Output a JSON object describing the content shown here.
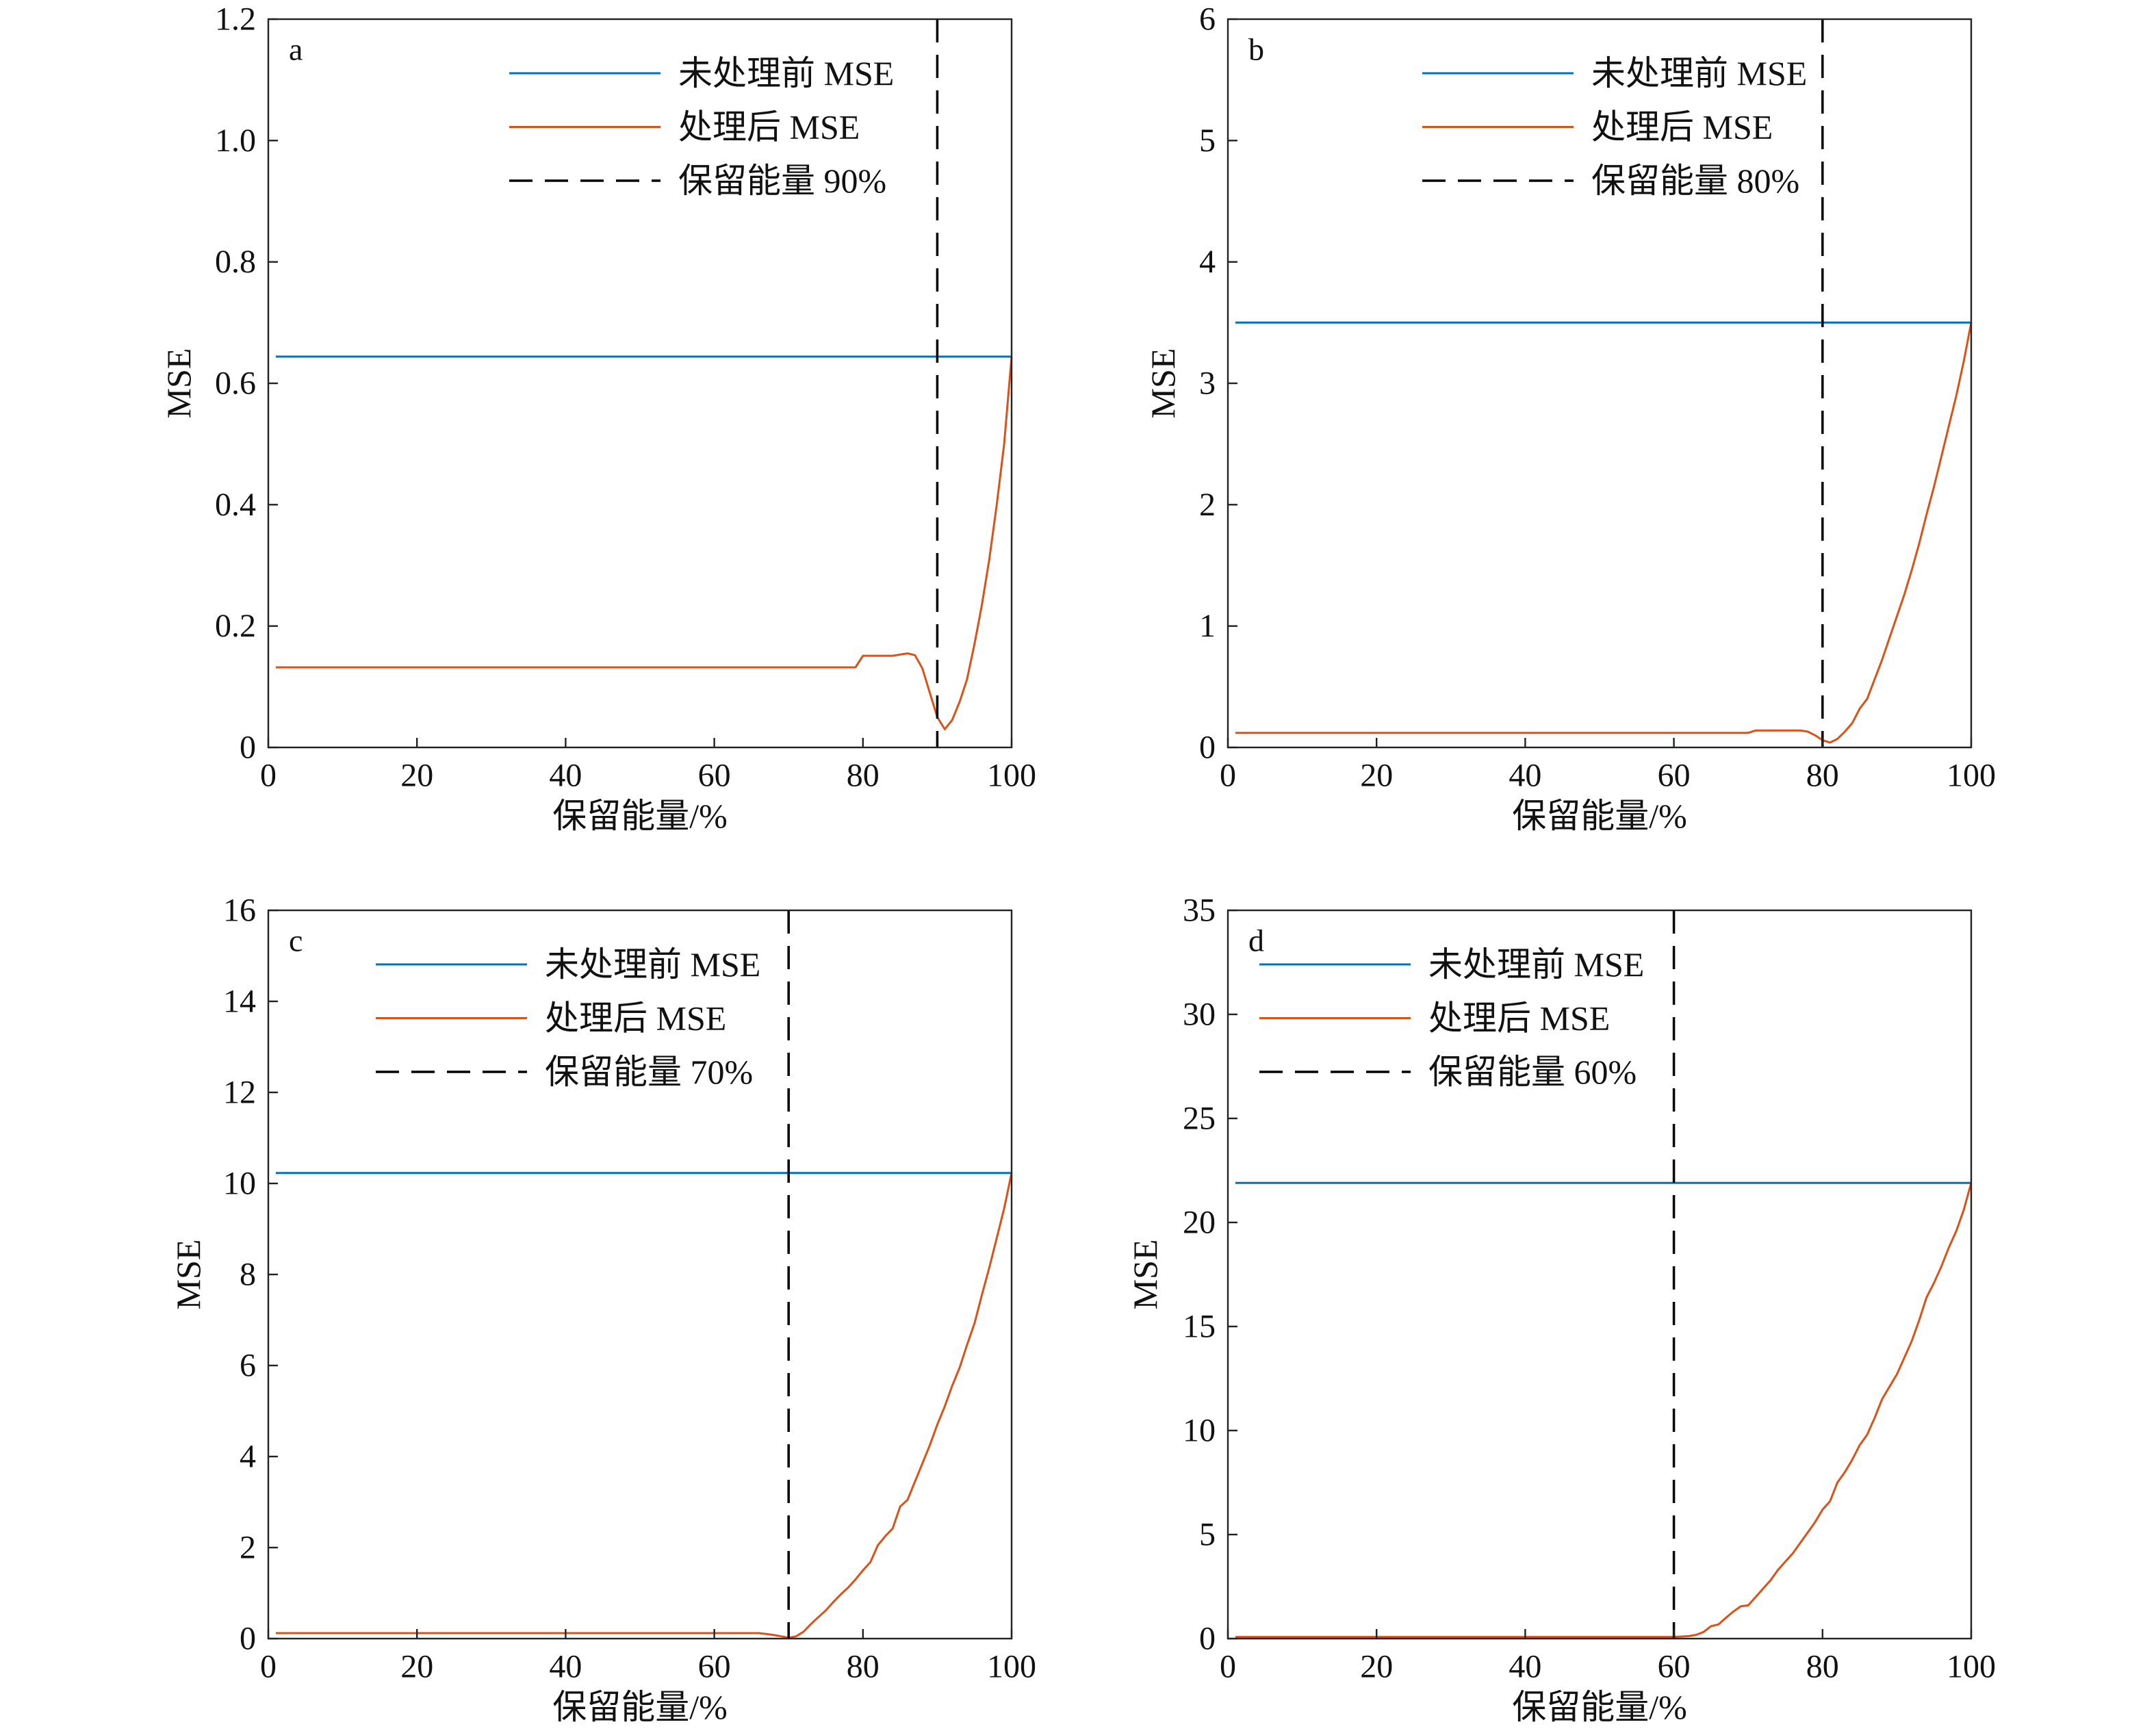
{
  "chart_data": [
    {
      "panel_label": "a",
      "type": "line",
      "xlabel": "保留能量/%",
      "ylabel": "MSE",
      "xlim": [
        0,
        100
      ],
      "ylim": [
        0,
        1.2
      ],
      "xticks": [
        "0",
        "20",
        "40",
        "60",
        "80",
        "100"
      ],
      "yticks": [
        "0",
        "0.2",
        "0.4",
        "0.6",
        "0.8",
        "1.0",
        "1.2"
      ],
      "grid": false,
      "legend_loc": "upper right",
      "series": [
        {
          "name": "未处理前 MSE",
          "color": "#0072BD",
          "x": [
            1,
            100
          ],
          "y": [
            0.644,
            0.644
          ]
        },
        {
          "name": "处理后 MSE",
          "color": "#D95319",
          "x": [
            1,
            79,
            80,
            84,
            85,
            86,
            87,
            88,
            89,
            90,
            91,
            92,
            93,
            94,
            95,
            96,
            97,
            98,
            99,
            100
          ],
          "y": [
            0.132,
            0.132,
            0.151,
            0.151,
            0.153,
            0.155,
            0.152,
            0.13,
            0.09,
            0.05,
            0.03,
            0.045,
            0.075,
            0.112,
            0.17,
            0.235,
            0.31,
            0.4,
            0.5,
            0.644
          ]
        }
      ],
      "vline": {
        "name": "保留能量 90%",
        "x": 90,
        "color": "#000000",
        "style": "dashed"
      }
    },
    {
      "panel_label": "b",
      "type": "line",
      "xlabel": "保留能量/%",
      "ylabel": "MSE",
      "xlim": [
        0,
        100
      ],
      "ylim": [
        0,
        6
      ],
      "xticks": [
        "0",
        "20",
        "40",
        "60",
        "80",
        "100"
      ],
      "yticks": [
        "0",
        "1",
        "2",
        "3",
        "4",
        "5",
        "6"
      ],
      "grid": false,
      "legend_loc": "upper right",
      "series": [
        {
          "name": "未处理前 MSE",
          "color": "#0072BD",
          "x": [
            1,
            100
          ],
          "y": [
            3.5,
            3.5
          ]
        },
        {
          "name": "处理后 MSE",
          "color": "#D95319",
          "x": [
            1,
            70,
            71,
            77,
            78,
            79,
            80,
            81,
            82,
            83,
            84,
            85,
            86,
            87,
            88,
            89,
            90,
            91,
            92,
            93,
            94,
            95,
            96,
            97,
            98,
            99,
            100
          ],
          "y": [
            0.12,
            0.12,
            0.14,
            0.14,
            0.13,
            0.1,
            0.06,
            0.04,
            0.07,
            0.13,
            0.2,
            0.32,
            0.4,
            0.56,
            0.72,
            0.9,
            1.08,
            1.26,
            1.46,
            1.68,
            1.92,
            2.15,
            2.4,
            2.65,
            2.9,
            3.18,
            3.5
          ]
        }
      ],
      "vline": {
        "name": "保留能量 80%",
        "x": 80,
        "color": "#000000",
        "style": "dashed"
      }
    },
    {
      "panel_label": "c",
      "type": "line",
      "xlabel": "保留能量/%",
      "ylabel": "MSE",
      "xlim": [
        0,
        100
      ],
      "ylim": [
        0,
        16
      ],
      "xticks": [
        "0",
        "20",
        "40",
        "60",
        "80",
        "100"
      ],
      "yticks": [
        "0",
        "2",
        "4",
        "6",
        "8",
        "10",
        "12",
        "14",
        "16"
      ],
      "grid": false,
      "legend_loc": "upper center",
      "series": [
        {
          "name": "未处理前 MSE",
          "color": "#0072BD",
          "x": [
            1,
            100
          ],
          "y": [
            10.23,
            10.23
          ]
        },
        {
          "name": "处理后 MSE",
          "color": "#D95319",
          "x": [
            1,
            66,
            67,
            68,
            69,
            70,
            71,
            72,
            73,
            74,
            75,
            76,
            77,
            78,
            79,
            80,
            81,
            82,
            83,
            84,
            85,
            86,
            87,
            88,
            89,
            90,
            91,
            92,
            93,
            94,
            95,
            96,
            97,
            98,
            99,
            100
          ],
          "y": [
            0.12,
            0.12,
            0.1,
            0.08,
            0.05,
            0.02,
            0.05,
            0.15,
            0.32,
            0.47,
            0.62,
            0.8,
            0.97,
            1.12,
            1.3,
            1.5,
            1.68,
            2.05,
            2.25,
            2.42,
            2.9,
            3.05,
            3.45,
            3.85,
            4.25,
            4.7,
            5.1,
            5.55,
            5.95,
            6.45,
            6.92,
            7.55,
            8.15,
            8.8,
            9.45,
            10.23
          ]
        }
      ],
      "vline": {
        "name": "保留能量 70%",
        "x": 70,
        "color": "#000000",
        "style": "dashed"
      }
    },
    {
      "panel_label": "d",
      "type": "line",
      "xlabel": "保留能量/%",
      "ylabel": "MSE",
      "xlim": [
        0,
        100
      ],
      "ylim": [
        0,
        35
      ],
      "xticks": [
        "0",
        "20",
        "40",
        "60",
        "80",
        "100"
      ],
      "yticks": [
        "0",
        "5",
        "10",
        "15",
        "20",
        "25",
        "30",
        "35"
      ],
      "grid": false,
      "legend_loc": "upper left",
      "series": [
        {
          "name": "未处理前 MSE",
          "color": "#0072BD",
          "x": [
            1,
            100
          ],
          "y": [
            21.9,
            21.9
          ]
        },
        {
          "name": "处理后 MSE",
          "color": "#D95319",
          "x": [
            1,
            60,
            61,
            62,
            63,
            64,
            65,
            66,
            67,
            68,
            69,
            70,
            71,
            72,
            73,
            74,
            75,
            76,
            77,
            78,
            79,
            80,
            81,
            82,
            83,
            84,
            85,
            86,
            87,
            88,
            89,
            90,
            91,
            92,
            93,
            94,
            95,
            96,
            97,
            98,
            99,
            100
          ],
          "y": [
            0.08,
            0.08,
            0.1,
            0.12,
            0.18,
            0.32,
            0.6,
            0.68,
            1.0,
            1.3,
            1.55,
            1.6,
            2.0,
            2.4,
            2.8,
            3.3,
            3.7,
            4.1,
            4.6,
            5.1,
            5.6,
            6.2,
            6.6,
            7.5,
            8.0,
            8.6,
            9.3,
            9.8,
            10.6,
            11.5,
            12.1,
            12.7,
            13.5,
            14.3,
            15.3,
            16.4,
            17.1,
            17.9,
            18.8,
            19.6,
            20.6,
            21.9
          ]
        }
      ],
      "vline": {
        "name": "保留能量 60%",
        "x": 60,
        "color": "#000000",
        "style": "dashed"
      }
    }
  ]
}
